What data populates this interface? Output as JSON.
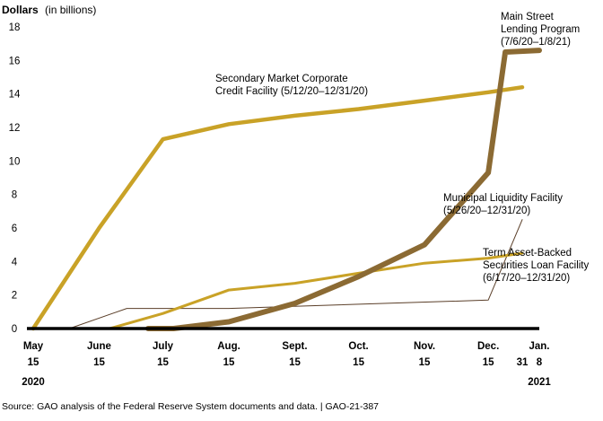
{
  "chart_data": {
    "type": "line",
    "title": "",
    "ylabel_bold": "Dollars",
    "ylabel_rest": "(in billions)",
    "ylim": [
      0,
      18
    ],
    "yticks": [
      0,
      2,
      4,
      6,
      8,
      10,
      12,
      14,
      16,
      18
    ],
    "xlim": [
      "2020-05-15",
      "2021-01-08"
    ],
    "xticks": [
      {
        "date": "2020-05-15",
        "lines": [
          "May",
          "15"
        ]
      },
      {
        "date": "2020-06-15",
        "lines": [
          "June",
          "15"
        ]
      },
      {
        "date": "2020-07-15",
        "lines": [
          "July",
          "15"
        ]
      },
      {
        "date": "2020-08-15",
        "lines": [
          "Aug.",
          "15"
        ]
      },
      {
        "date": "2020-09-15",
        "lines": [
          "Sept.",
          "15"
        ]
      },
      {
        "date": "2020-10-15",
        "lines": [
          "Oct.",
          "15"
        ]
      },
      {
        "date": "2020-11-15",
        "lines": [
          "Nov.",
          "15"
        ]
      },
      {
        "date": "2020-12-15",
        "lines": [
          "Dec.",
          "15"
        ]
      },
      {
        "date": "2020-12-31",
        "lines": [
          "",
          "31"
        ]
      },
      {
        "date": "2021-01-08",
        "lines": [
          "Jan.",
          "8"
        ]
      }
    ],
    "year_labels": [
      {
        "date": "2020-05-15",
        "text": "2020"
      },
      {
        "date": "2021-01-08",
        "text": "2021"
      }
    ],
    "series": [
      {
        "name": "Secondary Market Corporate Credit Facility",
        "label_lines": [
          "Secondary Market Corporate",
          "Credit Facility (5/12/20–12/31/20)"
        ],
        "color": "#C9A227",
        "width": 4.5,
        "points": [
          [
            "2020-05-15",
            0
          ],
          [
            "2020-06-15",
            6
          ],
          [
            "2020-07-15",
            11.3
          ],
          [
            "2020-08-15",
            12.2
          ],
          [
            "2020-09-15",
            12.7
          ],
          [
            "2020-10-15",
            13.1
          ],
          [
            "2020-11-15",
            13.6
          ],
          [
            "2020-12-15",
            14.1
          ],
          [
            "2020-12-31",
            14.4
          ]
        ]
      },
      {
        "name": "Main Street Lending Program",
        "label_lines": [
          "Main Street",
          "Lending Program",
          "(7/6/20–1/8/21)"
        ],
        "color": "#8B6A33",
        "width": 6,
        "points": [
          [
            "2020-07-08",
            0
          ],
          [
            "2020-07-20",
            0
          ],
          [
            "2020-08-15",
            0.4
          ],
          [
            "2020-09-15",
            1.5
          ],
          [
            "2020-10-15",
            3.1
          ],
          [
            "2020-11-15",
            5
          ],
          [
            "2020-12-15",
            9.3
          ],
          [
            "2020-12-23",
            16.5
          ],
          [
            "2021-01-08",
            16.6
          ]
        ]
      },
      {
        "name": "Term Asset-Backed Securities Loan Facility",
        "label_lines": [
          "Term Asset-Backed",
          "Securities Loan Facility",
          "(6/17/20–12/31/20)"
        ],
        "color": "#C9A227",
        "width": 3,
        "points": [
          [
            "2020-06-20",
            0
          ],
          [
            "2020-07-15",
            0.9
          ],
          [
            "2020-08-15",
            2.3
          ],
          [
            "2020-09-15",
            2.7
          ],
          [
            "2020-10-15",
            3.3
          ],
          [
            "2020-11-15",
            3.9
          ],
          [
            "2020-12-15",
            4.2
          ],
          [
            "2020-12-31",
            4.5
          ]
        ]
      },
      {
        "name": "Municipal Liquidity Facility",
        "label_lines": [
          "Municipal Liquidity Facility",
          "(5/26/20–12/31/20)"
        ],
        "color": "#5A3E28",
        "width": 1,
        "points": [
          [
            "2020-06-01",
            0
          ],
          [
            "2020-06-28",
            1.2
          ],
          [
            "2020-08-15",
            1.2
          ],
          [
            "2020-12-15",
            1.7
          ],
          [
            "2020-12-31",
            6.5
          ]
        ]
      }
    ],
    "baseline_color": "#000000"
  },
  "source_note": "Source: GAO analysis of the Federal Reserve System documents and data.  |  GAO-21-387"
}
